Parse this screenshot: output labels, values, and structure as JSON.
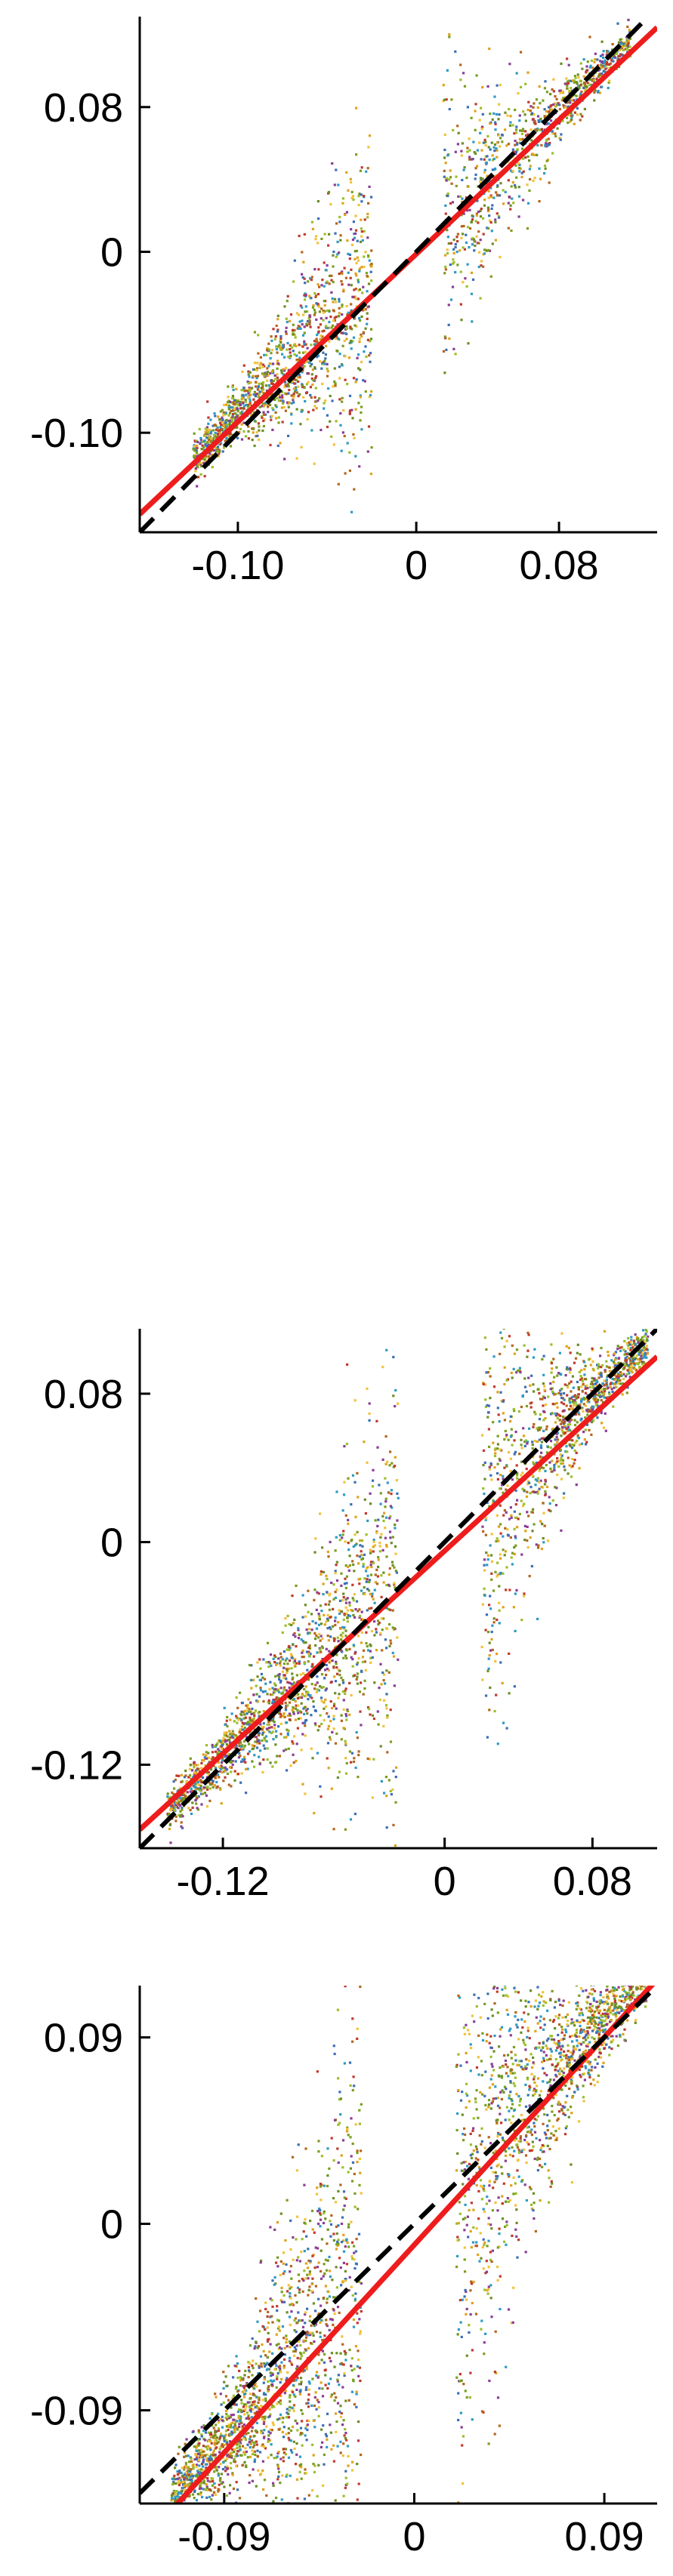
{
  "colors": {
    "axis": "#000000",
    "fit": "#ee1c1c",
    "identity": "#000000",
    "points": [
      "#7a9e1f",
      "#9bbf2b",
      "#e0a21b",
      "#f2c23a",
      "#3b6fb6",
      "#2e9ac4",
      "#8a3d95",
      "#c0392b",
      "#6b8e23",
      "#b5651d"
    ]
  },
  "chart_data": [
    {
      "type": "scatter",
      "title": "",
      "xlabel": "",
      "ylabel": "",
      "xlim": [
        -0.155,
        0.135
      ],
      "ylim": [
        -0.155,
        0.13
      ],
      "xticks": [
        -0.1,
        0,
        0.08
      ],
      "xtick_labels": [
        "-0.10",
        "0",
        "0.08"
      ],
      "yticks": [
        -0.1,
        0,
        0.08
      ],
      "ytick_labels": [
        "-0.10",
        "0",
        "0.08"
      ],
      "grid": false,
      "legend": "none",
      "lines": [
        {
          "kind": "fit",
          "style": "solid",
          "from": [
            -0.155,
            -0.145
          ],
          "to": [
            0.135,
            0.124
          ]
        },
        {
          "kind": "identity",
          "style": "dashed",
          "from": [
            -0.155,
            -0.155
          ],
          "to": [
            0.13,
            0.13
          ]
        }
      ],
      "clusters": [
        {
          "n": 1400,
          "x": [
            -0.125,
            -0.025
          ],
          "slope": 1.0,
          "intercept": 0.01,
          "spread": 0.006,
          "spread_growth": 0.045
        },
        {
          "n": 900,
          "x": [
            0.015,
            0.12
          ],
          "slope": 0.97,
          "intercept": 0.0,
          "spread": 0.005,
          "spread_growth": -0.04
        }
      ]
    },
    {
      "type": "scatter",
      "title": "",
      "xlabel": "",
      "ylabel": "",
      "xlim": [
        -0.165,
        0.115
      ],
      "ylim": [
        -0.165,
        0.115
      ],
      "xticks": [
        -0.12,
        0,
        0.08
      ],
      "xtick_labels": [
        "-0.12",
        "0",
        "0.08"
      ],
      "yticks": [
        -0.12,
        0,
        0.08
      ],
      "ytick_labels": [
        "-0.12",
        "0",
        "0.08"
      ],
      "grid": false,
      "legend": "none",
      "lines": [
        {
          "kind": "fit",
          "style": "solid",
          "from": [
            -0.165,
            -0.155
          ],
          "to": [
            0.115,
            0.1
          ]
        },
        {
          "kind": "identity",
          "style": "dashed",
          "from": [
            -0.165,
            -0.165
          ],
          "to": [
            0.115,
            0.115
          ]
        }
      ],
      "clusters": [
        {
          "n": 1700,
          "x": [
            -0.15,
            -0.025
          ],
          "slope": 1.0,
          "intercept": 0.005,
          "spread": 0.006,
          "spread_growth": 0.06
        },
        {
          "n": 1200,
          "x": [
            0.02,
            0.11
          ],
          "slope": 0.98,
          "intercept": 0.0,
          "spread": 0.006,
          "spread_growth": -0.06
        }
      ]
    },
    {
      "type": "scatter",
      "title": "",
      "xlabel": "",
      "ylabel": "",
      "xlim": [
        -0.13,
        0.115
      ],
      "ylim": [
        -0.135,
        0.115
      ],
      "xticks": [
        -0.09,
        0,
        0.09
      ],
      "xtick_labels": [
        "-0.09",
        "0",
        "0.09"
      ],
      "yticks": [
        -0.09,
        0,
        0.09
      ],
      "ytick_labels": [
        "-0.09",
        "0",
        "0.09"
      ],
      "grid": false,
      "legend": "none",
      "lines": [
        {
          "kind": "fit",
          "style": "solid",
          "from": [
            -0.13,
            -0.155
          ],
          "to": [
            0.115,
            0.118
          ]
        },
        {
          "kind": "identity",
          "style": "dashed",
          "from": [
            -0.13,
            -0.13
          ],
          "to": [
            0.115,
            0.115
          ]
        }
      ],
      "clusters": [
        {
          "n": 1800,
          "x": [
            -0.115,
            -0.025
          ],
          "slope": 1.12,
          "intercept": -0.005,
          "spread": 0.008,
          "spread_growth": 0.08
        },
        {
          "n": 1500,
          "x": [
            0.02,
            0.11
          ],
          "slope": 1.1,
          "intercept": 0.0,
          "spread": 0.008,
          "spread_growth": -0.075
        }
      ]
    }
  ]
}
